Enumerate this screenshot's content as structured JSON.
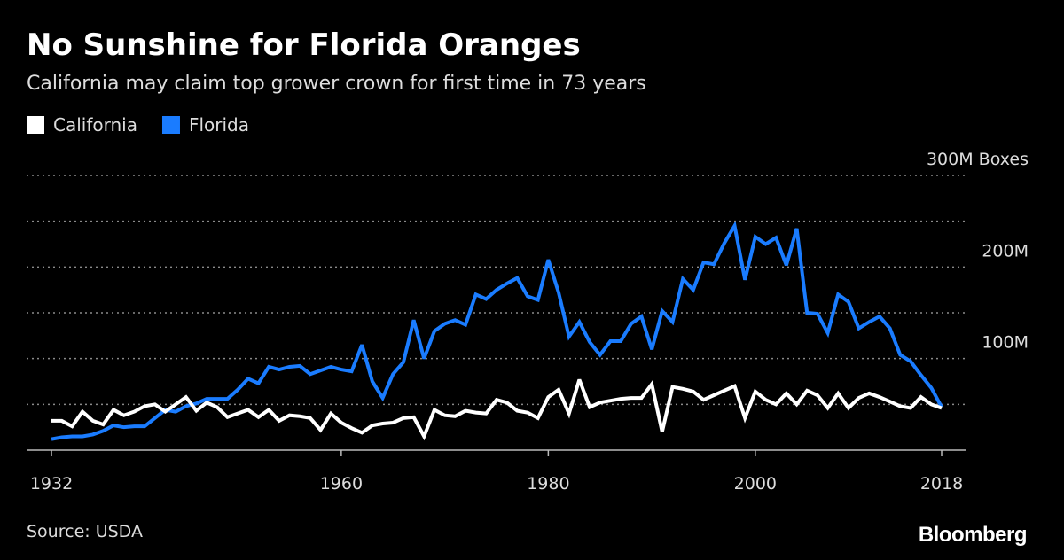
{
  "chart_data": {
    "type": "line",
    "title": "No Sunshine for Florida Oranges",
    "subtitle": "California may claim top grower crown for first time in 73 years",
    "source": "Source: USDA",
    "brand": "Bloomberg",
    "x": [
      1932,
      1933,
      1934,
      1935,
      1936,
      1937,
      1938,
      1939,
      1940,
      1941,
      1942,
      1943,
      1944,
      1945,
      1946,
      1947,
      1948,
      1949,
      1950,
      1951,
      1952,
      1953,
      1954,
      1955,
      1956,
      1957,
      1958,
      1959,
      1960,
      1961,
      1962,
      1963,
      1964,
      1965,
      1966,
      1967,
      1968,
      1969,
      1970,
      1971,
      1972,
      1973,
      1974,
      1975,
      1976,
      1977,
      1978,
      1979,
      1980,
      1981,
      1982,
      1983,
      1984,
      1985,
      1986,
      1987,
      1988,
      1989,
      1990,
      1991,
      1992,
      1993,
      1994,
      1995,
      1996,
      1997,
      1998,
      1999,
      2000,
      2001,
      2002,
      2003,
      2004,
      2005,
      2006,
      2007,
      2008,
      2009,
      2010,
      2011,
      2012,
      2013,
      2014,
      2015,
      2016,
      2017,
      2018
    ],
    "series": [
      {
        "name": "California",
        "color": "#ffffff",
        "values": [
          32,
          32,
          26,
          42,
          32,
          28,
          44,
          38,
          42,
          48,
          50,
          42,
          50,
          58,
          43,
          52,
          47,
          36,
          40,
          44,
          36,
          44,
          32,
          38,
          37,
          35,
          22,
          40,
          30,
          24,
          19,
          27,
          29,
          30,
          35,
          36,
          15,
          44,
          38,
          37,
          43,
          41,
          40,
          55,
          52,
          43,
          41,
          35,
          58,
          66,
          40,
          77,
          47,
          52,
          54,
          56,
          57,
          57,
          72,
          20,
          69,
          67,
          64,
          55,
          60,
          65,
          70,
          35,
          64,
          55,
          50,
          62,
          50,
          65,
          60,
          46,
          62,
          46,
          57,
          62,
          58,
          53,
          48,
          46,
          58,
          50,
          46
        ]
      },
      {
        "name": "Florida",
        "color": "#1a7cff",
        "values": [
          12,
          14,
          15,
          15,
          17,
          21,
          27,
          25,
          26,
          26,
          35,
          44,
          42,
          48,
          51,
          56,
          56,
          56,
          66,
          78,
          73,
          91,
          88,
          91,
          92,
          83,
          87,
          91,
          88,
          86,
          115,
          75,
          57,
          83,
          96,
          142,
          100,
          130,
          138,
          142,
          137,
          170,
          165,
          175,
          182,
          188,
          168,
          164,
          208,
          172,
          124,
          140,
          118,
          104,
          119,
          119,
          138,
          146,
          110,
          152,
          140,
          187,
          175,
          205,
          203,
          226,
          245,
          186,
          233,
          225,
          232,
          202,
          242,
          150,
          149,
          128,
          170,
          162,
          133,
          140,
          146,
          133,
          104,
          97,
          82,
          68,
          47
        ]
      }
    ],
    "xlim": [
      1932,
      2018
    ],
    "xticks": [
      1932,
      1960,
      1980,
      2000,
      2018
    ],
    "ylim": [
      0,
      300
    ],
    "yticks": [
      {
        "value": 100,
        "label": "100M"
      },
      {
        "value": 200,
        "label": "200M"
      },
      {
        "value": 300,
        "label": "300M Boxes"
      }
    ],
    "grid_lines": [
      50,
      100,
      150,
      200,
      250,
      300
    ],
    "grid": true,
    "legend": "top-left"
  }
}
